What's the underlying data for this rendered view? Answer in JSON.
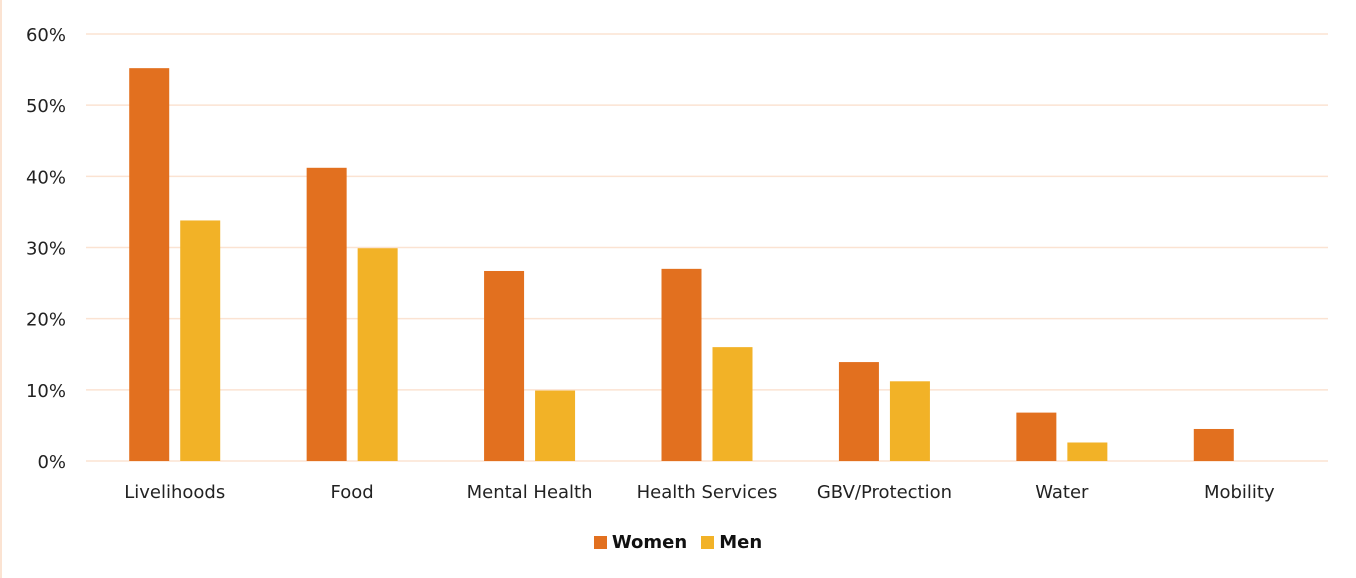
{
  "chart_data": {
    "type": "bar",
    "categories": [
      "Livelihoods",
      "Food",
      "Mental Health",
      "Health Services",
      "GBV/Protection",
      "Water",
      "Mobility"
    ],
    "series": [
      {
        "name": "Women",
        "color": "#e2701f",
        "values": [
          55.2,
          41.2,
          26.7,
          27.0,
          13.9,
          6.8,
          4.5
        ]
      },
      {
        "name": "Men",
        "color": "#f2b227",
        "values": [
          33.8,
          29.9,
          9.9,
          16.0,
          11.2,
          2.6,
          null
        ]
      }
    ],
    "y_ticks": [
      "0%",
      "10%",
      "20%",
      "30%",
      "40%",
      "50%",
      "60%"
    ],
    "ylim": [
      0,
      60
    ],
    "grid": true,
    "gridline_color": "#fbe3d2",
    "legend_position": "bottom-center"
  }
}
